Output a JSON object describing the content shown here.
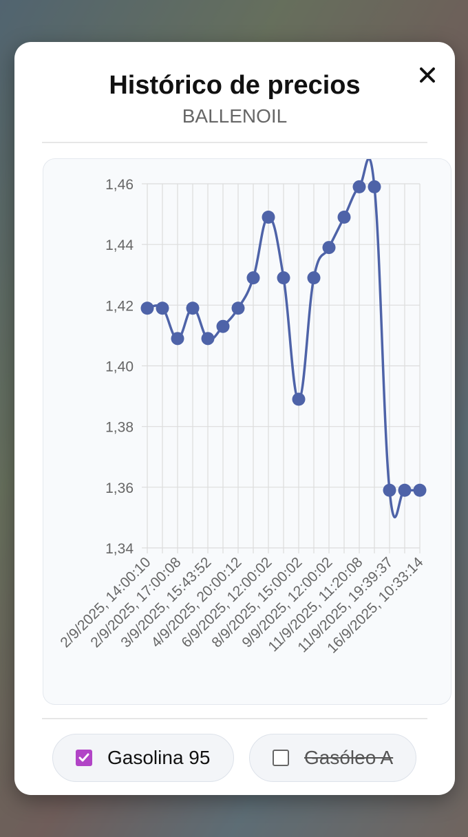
{
  "modal": {
    "title": "Histórico de precios",
    "subtitle": "BALLENOIL",
    "close_icon": "close-icon"
  },
  "toggles": [
    {
      "label": "Gasolina 95",
      "checked": true,
      "color": "#b144c6"
    },
    {
      "label": "Gasóleo A",
      "checked": false,
      "color": "#666666"
    }
  ],
  "chart_data": {
    "type": "line",
    "ylim": [
      1.34,
      1.46
    ],
    "y_ticks": [
      "1,46",
      "1,44",
      "1,42",
      "1,40",
      "1,38",
      "1,36",
      "1,34"
    ],
    "y_tick_values": [
      1.46,
      1.44,
      1.42,
      1.4,
      1.38,
      1.36,
      1.34
    ],
    "x_tick_labels": [
      "2/9/2025, 14:00:10",
      "2/9/2025, 17:00:08",
      "3/9/2025, 15:43:52",
      "4/9/2025, 20:00:12",
      "6/9/2025, 12:00:02",
      "8/9/2025, 15:00:02",
      "9/9/2025, 12:00:02",
      "11/9/2025, 11:20:08",
      "11/9/2025, 19:39:37",
      "16/9/2025, 10:33:14"
    ],
    "grid": true,
    "series": [
      {
        "color": "#4e63a8",
        "values": [
          1.419,
          1.419,
          1.409,
          1.419,
          1.409,
          1.413,
          1.419,
          1.429,
          1.449,
          1.429,
          1.389,
          1.429,
          1.439,
          1.449,
          1.459,
          1.459,
          1.359,
          1.359,
          1.359
        ]
      }
    ]
  }
}
